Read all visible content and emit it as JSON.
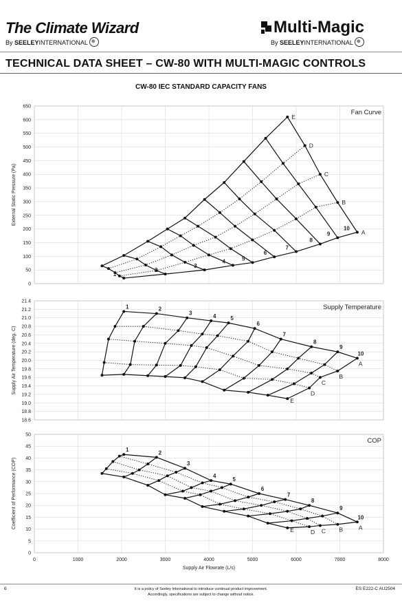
{
  "header": {
    "logo_left": "The Climate Wizard",
    "logo_left_sub_prefix": "By",
    "logo_left_sub_brand": "SEELEY",
    "logo_left_sub_rest": "INTERNATIONAL",
    "logo_right": "Multi-Magic",
    "logo_right_sub_prefix": "By",
    "logo_right_sub_brand": "SEELEY",
    "logo_right_sub_rest": "INTERNATIONAL"
  },
  "document_title": "TECHNICAL DATA SHEET – CW-80 WITH MULTI-MAGIC CONTROLS",
  "chart_heading": "CW-80 IEC STANDARD CAPACITY FANS",
  "footer": {
    "page_number": "6",
    "note_line1": "It is a policy of Seeley International to introduce continual product improvement.",
    "note_line2": "Accordingly, specifications are subject to change without notice.",
    "code": "ES E222-C  AU2504"
  },
  "chart_data": [
    {
      "type": "line",
      "title": "Fan Curve",
      "ylabel": "External Static Pressure (Pa)",
      "ylim": [
        0,
        650
      ],
      "yticks": [
        0,
        50,
        100,
        150,
        200,
        250,
        300,
        350,
        400,
        450,
        500,
        550,
        600,
        650
      ],
      "xlim": [
        0,
        8000
      ],
      "speed_labels": [
        "1",
        "2",
        "3",
        "4",
        "5",
        "6",
        "7",
        "8",
        "9",
        "10"
      ],
      "curve_labels": [
        "A",
        "B",
        "C",
        "D",
        "E"
      ],
      "grid": [
        [
          [
            1550,
            65
          ],
          [
            1700,
            55
          ],
          [
            1850,
            40
          ],
          [
            1950,
            28
          ],
          [
            2050,
            20
          ]
        ],
        [
          [
            2050,
            103
          ],
          [
            2350,
            90
          ],
          [
            2550,
            68
          ],
          [
            2800,
            48
          ],
          [
            3000,
            35
          ]
        ],
        [
          [
            2600,
            155
          ],
          [
            2900,
            135
          ],
          [
            3150,
            105
          ],
          [
            3450,
            78
          ],
          [
            3900,
            50
          ]
        ],
        [
          [
            3050,
            200
          ],
          [
            3350,
            175
          ],
          [
            3650,
            140
          ],
          [
            4000,
            105
          ],
          [
            4550,
            67
          ]
        ],
        [
          [
            3450,
            240
          ],
          [
            3750,
            210
          ],
          [
            4150,
            170
          ],
          [
            4500,
            128
          ],
          [
            5000,
            77
          ]
        ],
        [
          [
            3900,
            308
          ],
          [
            4250,
            260
          ],
          [
            4600,
            210
          ],
          [
            5000,
            160
          ],
          [
            5500,
            98
          ]
        ],
        [
          [
            4350,
            370
          ],
          [
            4700,
            310
          ],
          [
            5050,
            255
          ],
          [
            5500,
            195
          ],
          [
            6000,
            117
          ]
        ],
        [
          [
            4800,
            447
          ],
          [
            5200,
            373
          ],
          [
            5550,
            310
          ],
          [
            6000,
            237
          ],
          [
            6550,
            145
          ]
        ],
        [
          [
            5300,
            532
          ],
          [
            5700,
            440
          ],
          [
            6050,
            365
          ],
          [
            6450,
            280
          ],
          [
            6950,
            168
          ]
        ],
        [
          [
            5800,
            610
          ],
          [
            6200,
            505
          ],
          [
            6550,
            400
          ],
          [
            6950,
            297
          ],
          [
            7400,
            188
          ]
        ]
      ]
    },
    {
      "type": "line",
      "title": "Supply Temperature",
      "ylabel": "Supply Air Temperature (deg. C)",
      "ylim": [
        18.6,
        21.4
      ],
      "yticks": [
        18.6,
        18.8,
        19.0,
        19.2,
        19.4,
        19.6,
        19.8,
        20.0,
        20.2,
        20.4,
        20.6,
        20.8,
        21.0,
        21.2,
        21.4
      ],
      "xlim": [
        0,
        8000
      ],
      "speed_labels": [
        "1",
        "2",
        "3",
        "4",
        "5",
        "6",
        "7",
        "8",
        "9",
        "10"
      ],
      "curve_labels": [
        "A",
        "B",
        "C",
        "D",
        "E"
      ],
      "grid": [
        [
          [
            1550,
            19.65
          ],
          [
            1600,
            19.95
          ],
          [
            1700,
            20.5
          ],
          [
            1850,
            20.8
          ],
          [
            2050,
            21.15
          ]
        ],
        [
          [
            2050,
            19.67
          ],
          [
            2200,
            19.9
          ],
          [
            2300,
            20.45
          ],
          [
            2500,
            20.8
          ],
          [
            2800,
            21.1
          ]
        ],
        [
          [
            2600,
            19.64
          ],
          [
            2800,
            19.89
          ],
          [
            3000,
            20.4
          ],
          [
            3300,
            20.7
          ],
          [
            3500,
            21.0
          ]
        ],
        [
          [
            3000,
            19.62
          ],
          [
            3350,
            19.88
          ],
          [
            3600,
            20.35
          ],
          [
            3850,
            20.62
          ],
          [
            4050,
            20.93
          ]
        ],
        [
          [
            3450,
            19.59
          ],
          [
            3700,
            19.85
          ],
          [
            3950,
            20.3
          ],
          [
            4200,
            20.58
          ],
          [
            4450,
            20.88
          ]
        ],
        [
          [
            3850,
            19.5
          ],
          [
            4250,
            19.78
          ],
          [
            4550,
            20.1
          ],
          [
            4900,
            20.45
          ],
          [
            5050,
            20.75
          ]
        ],
        [
          [
            4350,
            19.3
          ],
          [
            4800,
            19.58
          ],
          [
            5150,
            19.88
          ],
          [
            5450,
            20.2
          ],
          [
            5650,
            20.5
          ]
        ],
        [
          [
            4900,
            19.25
          ],
          [
            5450,
            19.55
          ],
          [
            5800,
            19.8
          ],
          [
            6050,
            20.05
          ],
          [
            6350,
            20.32
          ]
        ],
        [
          [
            5350,
            19.18
          ],
          [
            5950,
            19.45
          ],
          [
            6350,
            19.7
          ],
          [
            6650,
            19.9
          ],
          [
            6950,
            20.2
          ]
        ],
        [
          [
            5800,
            19.1
          ],
          [
            6300,
            19.35
          ],
          [
            6550,
            19.6
          ],
          [
            6950,
            19.75
          ],
          [
            7400,
            20.05
          ]
        ]
      ]
    },
    {
      "type": "line",
      "title": "COP",
      "ylabel": "Coefficient of Performance (COP)",
      "xlabel": "Supply Air Flowrate (L/s)",
      "ylim": [
        0,
        50
      ],
      "yticks": [
        0,
        5,
        10,
        15,
        20,
        25,
        30,
        35,
        40,
        45,
        50
      ],
      "xlim": [
        0,
        8000
      ],
      "xticks": [
        0,
        1000,
        2000,
        3000,
        4000,
        5000,
        6000,
        7000,
        8000
      ],
      "speed_labels": [
        "1",
        "2",
        "3",
        "4",
        "5",
        "6",
        "7",
        "8",
        "9",
        "10"
      ],
      "curve_labels": [
        "A",
        "B",
        "C",
        "D",
        "E"
      ],
      "grid": [
        [
          [
            1550,
            33.5
          ],
          [
            1650,
            35.5
          ],
          [
            1800,
            38.5
          ],
          [
            1950,
            40.8
          ],
          [
            2050,
            41.5
          ]
        ],
        [
          [
            2050,
            32
          ],
          [
            2250,
            33.5
          ],
          [
            2400,
            35
          ],
          [
            2600,
            37.5
          ],
          [
            2800,
            40.3
          ]
        ],
        [
          [
            2600,
            28.5
          ],
          [
            2850,
            30.5
          ],
          [
            3050,
            32.5
          ],
          [
            3250,
            34
          ],
          [
            3450,
            35.7
          ]
        ],
        [
          [
            3000,
            24.5
          ],
          [
            3400,
            26
          ],
          [
            3600,
            27.5
          ],
          [
            3850,
            29.5
          ],
          [
            4050,
            30.5
          ]
        ],
        [
          [
            3450,
            23
          ],
          [
            3800,
            24.5
          ],
          [
            4050,
            26
          ],
          [
            4300,
            27.5
          ],
          [
            4500,
            29
          ]
        ],
        [
          [
            3850,
            19.5
          ],
          [
            4250,
            20.5
          ],
          [
            4600,
            22
          ],
          [
            4900,
            23.5
          ],
          [
            5150,
            25
          ]
        ],
        [
          [
            4350,
            17.5
          ],
          [
            4800,
            18.5
          ],
          [
            5200,
            20
          ],
          [
            5500,
            21.5
          ],
          [
            5750,
            22.5
          ]
        ],
        [
          [
            4900,
            15.5
          ],
          [
            5400,
            16.5
          ],
          [
            5800,
            17.5
          ],
          [
            6100,
            18.5
          ],
          [
            6300,
            20
          ]
        ],
        [
          [
            5350,
            12.5
          ],
          [
            5900,
            13.5
          ],
          [
            6250,
            14.5
          ],
          [
            6600,
            15.5
          ],
          [
            6950,
            16.8
          ]
        ],
        [
          [
            5800,
            10.5
          ],
          [
            6300,
            11
          ],
          [
            6550,
            11.5
          ],
          [
            6950,
            12
          ],
          [
            7400,
            13
          ]
        ]
      ]
    }
  ]
}
